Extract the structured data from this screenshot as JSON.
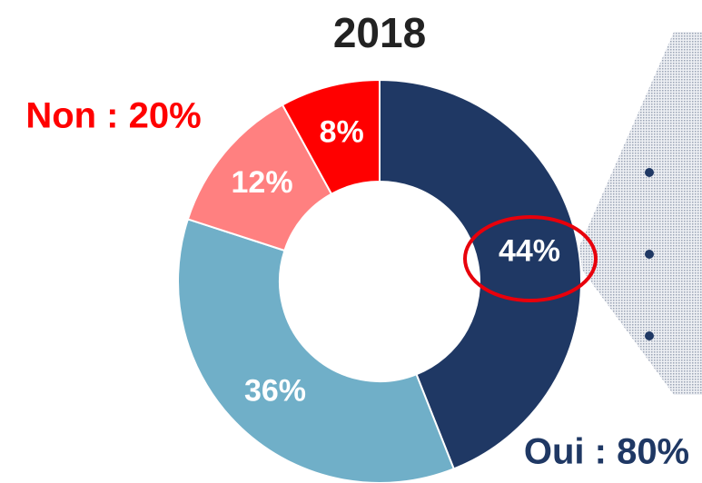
{
  "chart_data": {
    "type": "donut",
    "title": "2018",
    "values": [
      44,
      36,
      12,
      8
    ],
    "value_labels": [
      "44%",
      "36%",
      "12%",
      "8%"
    ],
    "colors": [
      "#1f3864",
      "#70afc8",
      "#ff8080",
      "#ff0000"
    ],
    "annotations": [
      "Non : 20%",
      "Oui : 80%"
    ]
  }
}
